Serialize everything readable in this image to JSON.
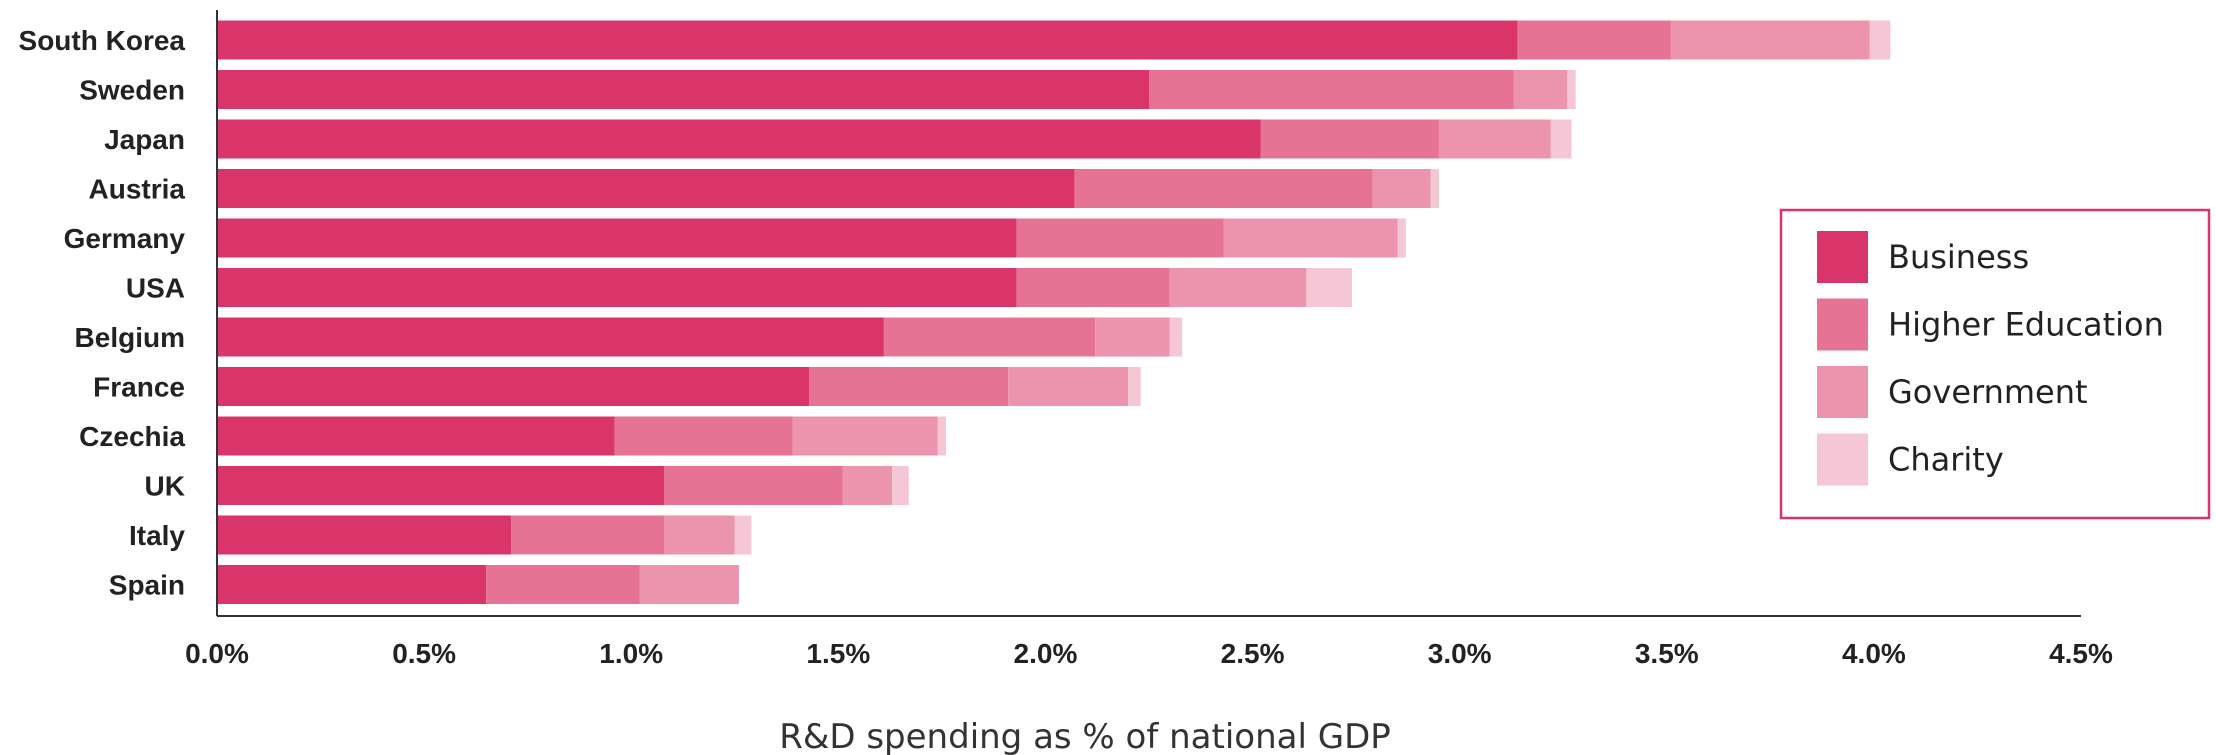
{
  "chart_data": {
    "type": "bar",
    "orientation": "horizontal",
    "stacked": true,
    "categories": [
      "South Korea",
      "Sweden",
      "Japan",
      "Austria",
      "Germany",
      "USA",
      "Belgium",
      "France",
      "Czechia",
      "UK",
      "Italy",
      "Spain"
    ],
    "series": [
      {
        "name": "Business",
        "color": "#d9356a",
        "values": [
          3.14,
          2.25,
          2.52,
          2.07,
          1.93,
          1.93,
          1.61,
          1.43,
          0.96,
          1.08,
          0.71,
          0.65
        ]
      },
      {
        "name": "Higher Education",
        "color": "#e67393",
        "values": [
          0.37,
          0.88,
          0.43,
          0.72,
          0.5,
          0.37,
          0.51,
          0.48,
          0.43,
          0.43,
          0.37,
          0.37
        ]
      },
      {
        "name": "Government",
        "color": "#ec93ae",
        "values": [
          0.48,
          0.13,
          0.27,
          0.14,
          0.42,
          0.33,
          0.18,
          0.29,
          0.35,
          0.12,
          0.17,
          0.24
        ]
      },
      {
        "name": "Charity",
        "color": "#f5c6d6",
        "values": [
          0.05,
          0.02,
          0.05,
          0.02,
          0.02,
          0.11,
          0.03,
          0.03,
          0.02,
          0.04,
          0.04,
          0.0
        ]
      }
    ],
    "xlim": [
      0,
      4.5
    ],
    "x_ticks": [
      "0.0%",
      "0.5%",
      "1.0%",
      "1.5%",
      "2.0%",
      "2.5%",
      "3.0%",
      "3.5%",
      "4.0%",
      "4.5%"
    ],
    "xlabel": "R&D spending as % of national GDP",
    "ylabel": "",
    "title": "",
    "grid": false,
    "legend_position": "right",
    "legend_border_color": "#d9356a"
  }
}
